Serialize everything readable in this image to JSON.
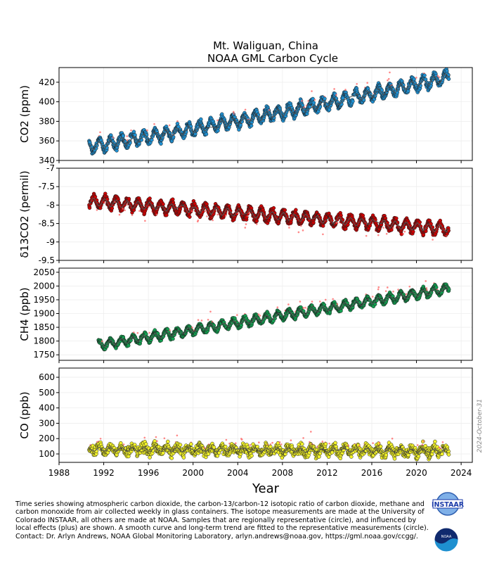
{
  "title": "Mt. Waliguan, China",
  "subtitle": "NOAA GML Carbon Cycle",
  "xlabel": "Year",
  "datestamp": "2024-October-31",
  "caption": "Time series showing atmospheric carbon dioxide, the carbon-13/carbon-12 isotopic ratio of carbon dioxide, methane and carbon monoxide from air collected weekly in glass containers.  The isotope measurements are made at the University of Colorado INSTAAR, all others are made at NOAA.  Samples that are regionally representative (circle), and influenced by local effects (plus) are shown.  A smooth curve and long-term trend are fitted to the representative measurements (circle).  Contact:  Dr. Arlyn Andrews, NOAA Global Monitoring Laboratory, arlyn.andrews@noaa.gov, https://gml.noaa.gov/ccgg/.",
  "logos": {
    "instaar": "INSTAAR",
    "noaa": "NOAA"
  },
  "colors": {
    "co2": "#1f8fd0",
    "d13c": "#cc0000",
    "ch4": "#12a050",
    "co": "#f2f22a",
    "outlier": "#ff6a6a",
    "trend": "#555555"
  },
  "chart_data": [
    {
      "type": "scatter",
      "name": "co2",
      "ylabel": "CO2 (ppm)",
      "xlim": [
        1988,
        2025
      ],
      "ylim": [
        340,
        435
      ],
      "x_ticks": [
        1988,
        1992,
        1996,
        2000,
        2004,
        2008,
        2012,
        2016,
        2020,
        2024
      ],
      "y_ticks": [
        340,
        360,
        380,
        400,
        420
      ],
      "grid": true,
      "start_year": 1990.7,
      "end_year": 2022.9,
      "start_value": 354,
      "end_value": 419,
      "seasonal_amplitude": 6
    },
    {
      "type": "scatter",
      "name": "d13c",
      "ylabel": "δ13CO2 (permil)",
      "xlim": [
        1988,
        2025
      ],
      "ylim": [
        -9.5,
        -7.0
      ],
      "x_ticks": [
        1988,
        1992,
        1996,
        2000,
        2004,
        2008,
        2012,
        2016,
        2020,
        2024
      ],
      "y_ticks": [
        -9.5,
        -9.0,
        -8.5,
        -8.0,
        -7.5,
        -7.0
      ],
      "grid": true,
      "start_year": 1990.7,
      "end_year": 2022.9,
      "start_value": -7.9,
      "end_value": -8.65,
      "seasonal_amplitude": 0.15
    },
    {
      "type": "scatter",
      "name": "ch4",
      "ylabel": "CH4 (ppb)",
      "xlim": [
        1988,
        2025
      ],
      "ylim": [
        1730,
        2065
      ],
      "x_ticks": [
        1988,
        1992,
        1996,
        2000,
        2004,
        2008,
        2012,
        2016,
        2020,
        2024
      ],
      "y_ticks": [
        1750,
        1800,
        1850,
        1900,
        1950,
        2000,
        2050
      ],
      "grid": true,
      "start_year": 1991.5,
      "end_year": 2022.9,
      "start_value": 1785,
      "end_value": 1990,
      "seasonal_amplitude": 15
    },
    {
      "type": "scatter",
      "name": "co",
      "ylabel": "CO (ppb)",
      "xlabel": "Year",
      "xlim": [
        1988,
        2025
      ],
      "ylim": [
        45,
        660
      ],
      "x_ticks": [
        1988,
        1992,
        1996,
        2000,
        2004,
        2008,
        2012,
        2016,
        2020,
        2024
      ],
      "y_ticks": [
        100,
        200,
        300,
        400,
        500,
        600
      ],
      "grid": true,
      "start_year": 1990.7,
      "end_year": 2022.9,
      "start_value": 130,
      "end_value": 120,
      "seasonal_amplitude": 20
    }
  ]
}
